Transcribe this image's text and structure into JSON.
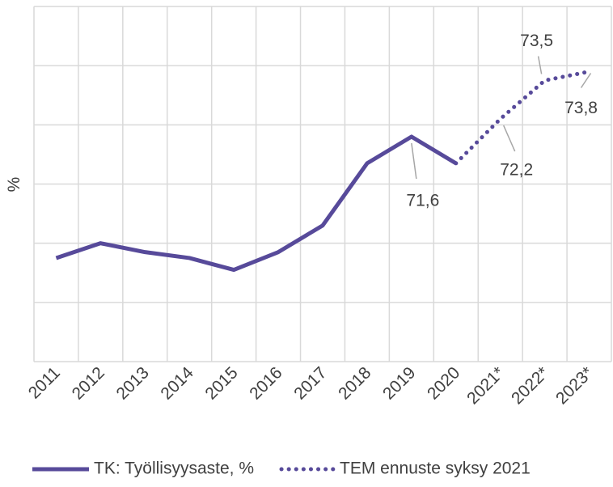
{
  "chart_data": {
    "type": "line",
    "ylabel": "%",
    "categories": [
      "2011",
      "2012",
      "2013",
      "2014",
      "2015",
      "2016",
      "2017",
      "2018",
      "2019",
      "2020",
      "2021*",
      "2022*",
      "2023*"
    ],
    "series": [
      {
        "name": "TK: Työllisyysaste, %",
        "color": "#574a9a",
        "style": "solid",
        "values": [
          67.5,
          68.0,
          67.7,
          67.5,
          67.1,
          67.7,
          68.6,
          70.7,
          71.6,
          70.7,
          null,
          null,
          null
        ],
        "value_labels": [
          null,
          null,
          null,
          null,
          null,
          null,
          null,
          null,
          "71,6",
          null,
          null,
          null,
          null
        ]
      },
      {
        "name": "TEM ennuste syksy 2021",
        "color": "#574a9a",
        "style": "dotted",
        "values": [
          null,
          null,
          null,
          null,
          null,
          null,
          null,
          null,
          null,
          70.7,
          72.2,
          73.5,
          73.8
        ],
        "value_labels": [
          null,
          null,
          null,
          null,
          null,
          null,
          null,
          null,
          null,
          null,
          "72,2",
          "73,5",
          "73,8"
        ]
      }
    ],
    "ylim": [
      64,
      76
    ],
    "ygrid": [
      64,
      66,
      68,
      70,
      72,
      74,
      76
    ],
    "grid": true,
    "legend": "bottom"
  }
}
